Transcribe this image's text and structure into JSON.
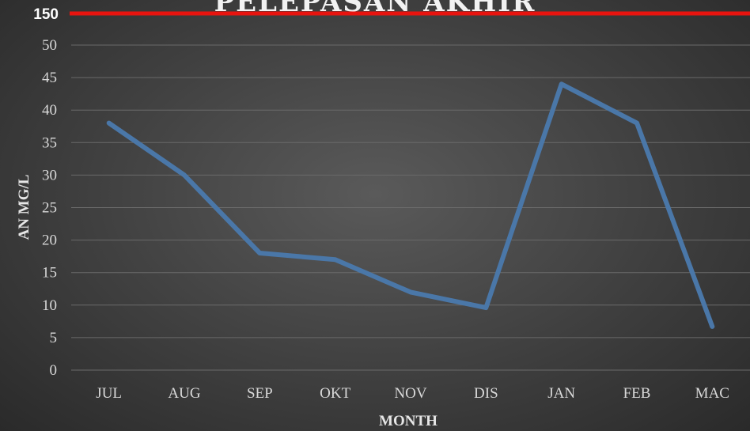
{
  "chart_data": {
    "type": "line",
    "title": "PELEPASAN AKHIR",
    "xlabel": "MONTH",
    "ylabel": "AN MG/L",
    "categories": [
      "JUL",
      "AUG",
      "SEP",
      "OKT",
      "NOV",
      "DIS",
      "JAN",
      "FEB",
      "MAC"
    ],
    "series": [
      {
        "values": [
          38,
          30,
          18,
          17,
          12,
          9.6,
          44,
          38,
          6.7
        ],
        "color": "#4a77a8"
      }
    ],
    "ylim": [
      0,
      50
    ],
    "yticks": [
      0,
      5,
      10,
      15,
      20,
      25,
      30,
      35,
      40,
      45,
      50
    ],
    "limit_line": {
      "label": "150",
      "color": "#e8140f"
    },
    "grid": true
  }
}
